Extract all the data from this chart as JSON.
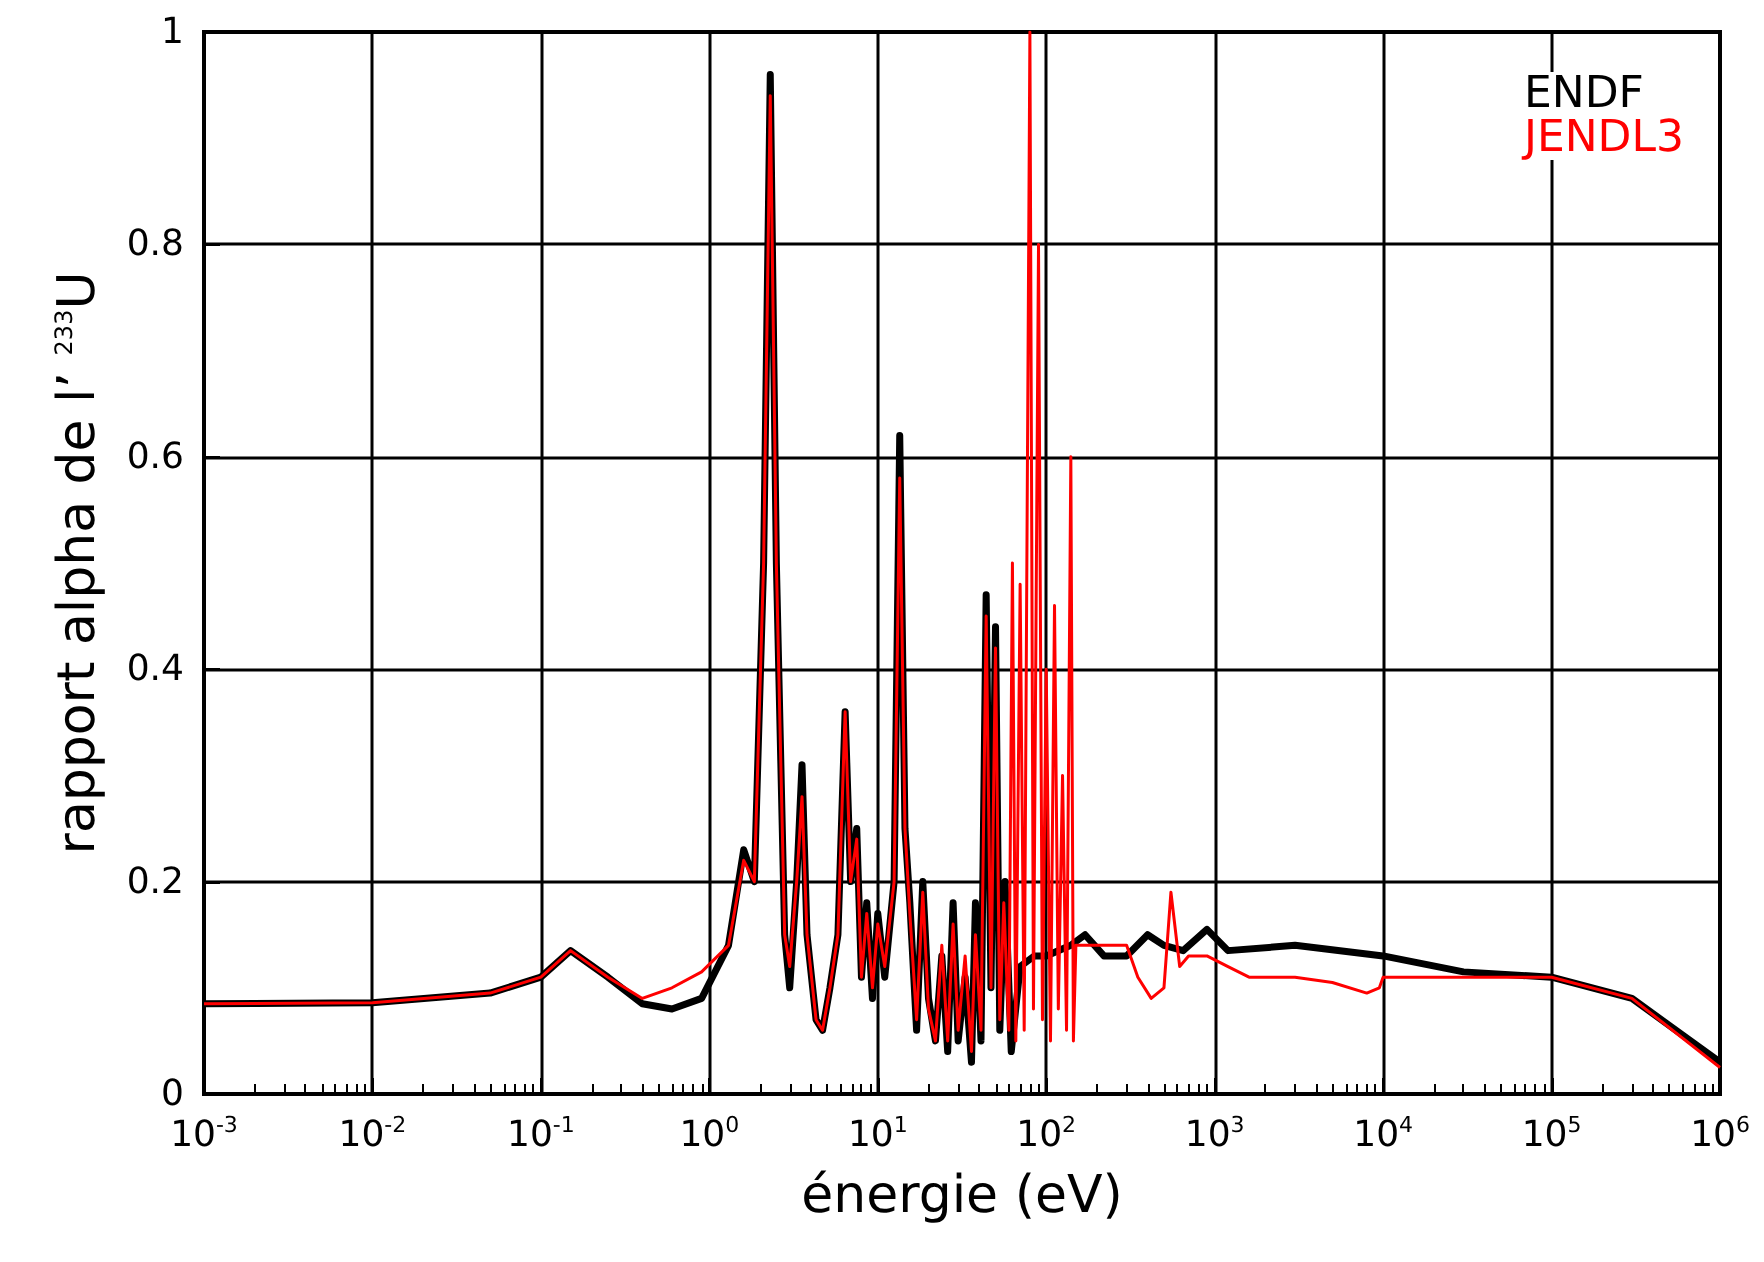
{
  "chart_data": {
    "type": "line",
    "xlabel": "énergie (eV)",
    "ylabel": "rapport alpha de l’ $^{233}$U",
    "log": "x",
    "xlim": [
      0.001,
      1000000
    ],
    "xticks": [
      {
        "value": 0.001,
        "label": "10$^{-3}$"
      },
      {
        "value": 0.01,
        "label": "10$^{-2}$"
      },
      {
        "value": 0.1,
        "label": "10$^{-1}$"
      },
      {
        "value": 1,
        "label": "10$^{0}$"
      },
      {
        "value": 10,
        "label": "10$^{1}$"
      },
      {
        "value": 100,
        "label": "10$^{2}$"
      },
      {
        "value": 1000,
        "label": "10$^{3}$"
      },
      {
        "value": 10000,
        "label": "10$^{4}$"
      },
      {
        "value": 100000,
        "label": "10$^{5}$"
      },
      {
        "value": 1000000,
        "label": "10$^{6}$"
      }
    ],
    "ylim": [
      0,
      1
    ],
    "yticks": [
      0,
      0.2,
      0.4,
      0.6,
      0.8,
      1
    ],
    "grid": true,
    "legend": "top right",
    "marker": "none",
    "series": [
      {
        "name": "ENDF",
        "color": "#000000",
        "x": [
          0.001,
          0.01,
          0.05,
          0.1,
          0.15,
          0.25,
          0.4,
          0.6,
          0.9,
          1.3,
          1.6,
          1.85,
          2.1,
          2.3,
          2.5,
          2.8,
          3.0,
          3.3,
          3.55,
          3.8,
          4.3,
          4.7,
          5.2,
          5.8,
          6.4,
          6.9,
          7.5,
          8.0,
          8.6,
          9.3,
          10,
          11,
          12.5,
          13.5,
          14.5,
          15.5,
          17,
          18.5,
          20,
          22,
          24,
          26,
          28,
          30,
          33,
          36,
          38,
          41,
          44,
          47,
          50,
          53,
          57,
          62,
          70,
          85,
          100,
          140,
          170,
          220,
          300,
          400,
          500,
          650,
          900,
          1200,
          3000,
          10000,
          30000,
          100000,
          300000,
          1000000
        ],
        "values": [
          0.085,
          0.086,
          0.095,
          0.11,
          0.135,
          0.11,
          0.085,
          0.08,
          0.09,
          0.14,
          0.23,
          0.2,
          0.5,
          0.96,
          0.5,
          0.15,
          0.1,
          0.2,
          0.31,
          0.15,
          0.07,
          0.06,
          0.1,
          0.15,
          0.36,
          0.2,
          0.25,
          0.11,
          0.18,
          0.09,
          0.17,
          0.11,
          0.2,
          0.62,
          0.25,
          0.18,
          0.06,
          0.2,
          0.09,
          0.05,
          0.13,
          0.04,
          0.18,
          0.05,
          0.11,
          0.03,
          0.18,
          0.05,
          0.47,
          0.1,
          0.44,
          0.06,
          0.2,
          0.04,
          0.12,
          0.13,
          0.13,
          0.14,
          0.15,
          0.13,
          0.13,
          0.15,
          0.14,
          0.135,
          0.155,
          0.135,
          0.14,
          0.13,
          0.115,
          0.11,
          0.09,
          0.03
        ]
      },
      {
        "name": "JENDL3",
        "color": "#ff0000",
        "x": [
          0.001,
          0.01,
          0.05,
          0.1,
          0.15,
          0.25,
          0.4,
          0.6,
          0.9,
          1.3,
          1.6,
          1.85,
          2.1,
          2.3,
          2.5,
          2.8,
          3.0,
          3.3,
          3.55,
          3.8,
          4.3,
          4.7,
          5.2,
          5.8,
          6.4,
          6.9,
          7.5,
          8.0,
          8.6,
          9.3,
          10,
          11,
          12.5,
          13.5,
          14.5,
          15.5,
          17,
          18.5,
          20,
          22,
          24,
          26,
          28,
          30,
          33,
          36,
          38,
          41,
          44,
          47,
          50,
          53,
          56,
          60,
          63,
          66,
          70,
          74,
          80,
          84,
          90,
          95,
          100,
          106,
          112,
          118,
          125,
          132,
          140,
          145,
          150,
          220,
          300,
          350,
          420,
          500,
          550,
          620,
          700,
          900,
          1200,
          1600,
          3000,
          5000,
          8000,
          9500,
          10000,
          30000,
          100000,
          300000,
          1000000
        ],
        "values": [
          0.085,
          0.086,
          0.095,
          0.11,
          0.135,
          0.11,
          0.09,
          0.1,
          0.115,
          0.14,
          0.22,
          0.2,
          0.5,
          0.94,
          0.5,
          0.15,
          0.12,
          0.2,
          0.28,
          0.15,
          0.07,
          0.06,
          0.1,
          0.15,
          0.36,
          0.2,
          0.24,
          0.11,
          0.17,
          0.1,
          0.16,
          0.12,
          0.2,
          0.58,
          0.25,
          0.17,
          0.07,
          0.19,
          0.08,
          0.05,
          0.14,
          0.05,
          0.16,
          0.06,
          0.13,
          0.04,
          0.15,
          0.06,
          0.45,
          0.1,
          0.42,
          0.07,
          0.18,
          0.06,
          0.5,
          0.05,
          0.48,
          0.06,
          1.0,
          0.08,
          0.8,
          0.07,
          0.4,
          0.05,
          0.46,
          0.08,
          0.3,
          0.06,
          0.6,
          0.05,
          0.14,
          0.14,
          0.14,
          0.11,
          0.09,
          0.1,
          0.19,
          0.12,
          0.13,
          0.13,
          0.12,
          0.11,
          0.11,
          0.105,
          0.095,
          0.1,
          0.11,
          0.11,
          0.11,
          0.09,
          0.025
        ]
      }
    ]
  }
}
